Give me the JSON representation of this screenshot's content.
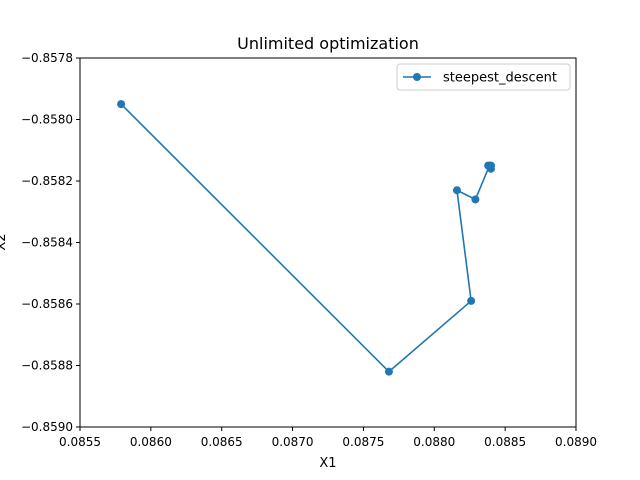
{
  "chart_data": {
    "type": "line",
    "title": "Unlimited optimization",
    "xlabel": "X1",
    "ylabel": "X2",
    "xlim": [
      0.0855,
      0.089
    ],
    "ylim": [
      -0.859,
      -0.8578
    ],
    "xticks": [
      0.0855,
      0.086,
      0.0865,
      0.087,
      0.0875,
      0.088,
      0.0885,
      0.089
    ],
    "xtick_labels": [
      "0.0855",
      "0.0860",
      "0.0865",
      "0.0870",
      "0.0875",
      "0.0880",
      "0.0885",
      "0.0890"
    ],
    "yticks": [
      -0.859,
      -0.8588,
      -0.8586,
      -0.8584,
      -0.8582,
      -0.858,
      -0.8578
    ],
    "ytick_labels": [
      "−0.8590",
      "−0.8588",
      "−0.8586",
      "−0.8584",
      "−0.8582",
      "−0.8580",
      "−0.8578"
    ],
    "grid": false,
    "legend_position": "top-right",
    "series": [
      {
        "name": "steepest_descent",
        "color": "#1f77b4",
        "marker": "circle",
        "x": [
          0.08579,
          0.08768,
          0.08826,
          0.08816,
          0.08829,
          0.08839,
          0.08838,
          0.0884,
          0.0884
        ],
        "y": [
          -0.85795,
          -0.85882,
          -0.85859,
          -0.85823,
          -0.85826,
          -0.85815,
          -0.85815,
          -0.85816,
          -0.85815
        ]
      }
    ]
  }
}
